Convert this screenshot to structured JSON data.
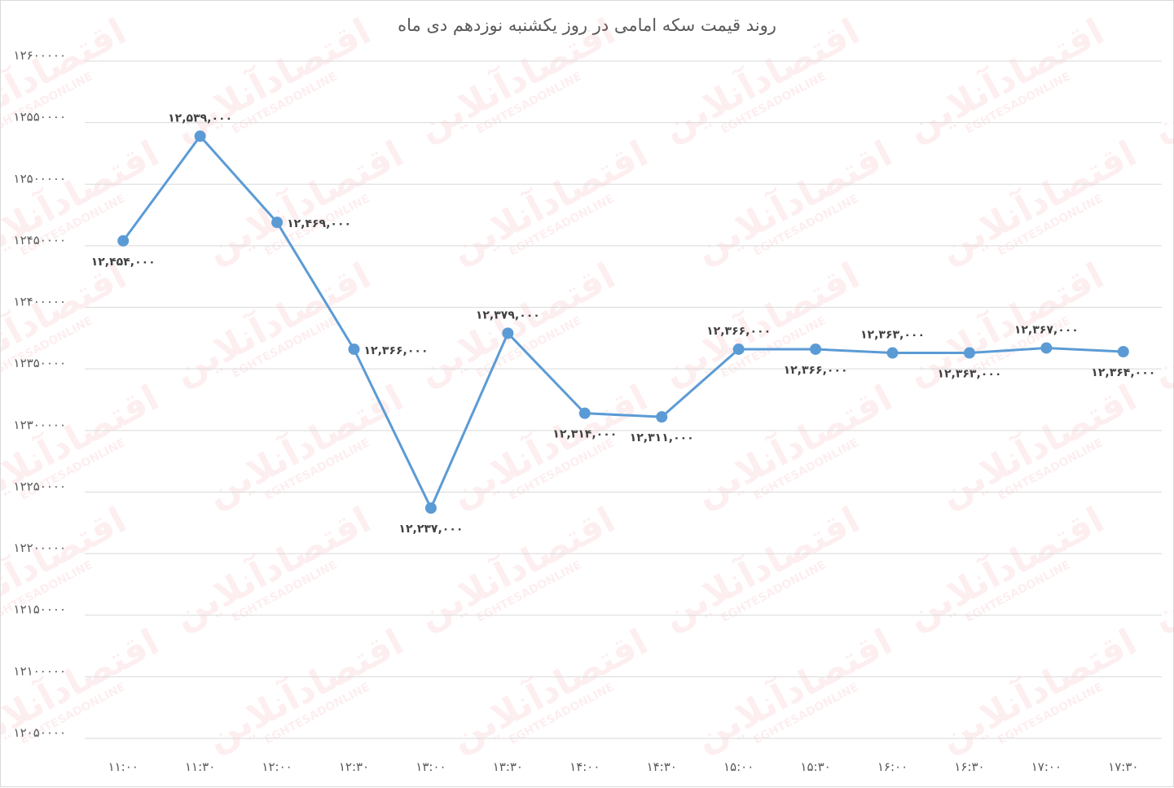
{
  "chart_data": {
    "type": "line",
    "title": "روند قیمت سکه امامی در روز یکشنبه نوزدهم دی ماه",
    "xlabel": "",
    "ylabel": "",
    "categories": [
      "۱۱:۰۰",
      "۱۱:۳۰",
      "۱۲:۰۰",
      "۱۲:۳۰",
      "۱۳:۰۰",
      "۱۳:۳۰",
      "۱۴:۰۰",
      "۱۴:۳۰",
      "۱۵:۰۰",
      "۱۵:۳۰",
      "۱۶:۰۰",
      "۱۶:۳۰",
      "۱۷:۰۰",
      "۱۷:۳۰"
    ],
    "series": [
      {
        "values": [
          12454000,
          12539000,
          12469000,
          12366000,
          12237000,
          12379000,
          12314000,
          12311000,
          12366000,
          12366000,
          12363000,
          12363000,
          12367000,
          12364000
        ],
        "data_labels": [
          "۱۲,۴۵۴,۰۰۰",
          "۱۲,۵۳۹,۰۰۰",
          "۱۲,۴۶۹,۰۰۰",
          "۱۲,۳۶۶,۰۰۰",
          "۱۲,۲۳۷,۰۰۰",
          "۱۲,۳۷۹,۰۰۰",
          "۱۲,۳۱۴,۰۰۰",
          "۱۲,۳۱۱,۰۰۰",
          "۱۲,۳۶۶,۰۰۰",
          "۱۲,۳۶۶,۰۰۰",
          "۱۲,۳۶۳,۰۰۰",
          "۱۲,۳۶۳,۰۰۰",
          "۱۲,۳۶۷,۰۰۰",
          "۱۲,۳۶۴,۰۰۰"
        ],
        "label_positions": [
          "below",
          "above",
          "right",
          "right",
          "below",
          "above",
          "below",
          "below",
          "above",
          "below",
          "above",
          "below",
          "above",
          "below"
        ],
        "color": "#5b9bd5"
      }
    ],
    "yticks": [
      12050000,
      12100000,
      12150000,
      12200000,
      12250000,
      12300000,
      12350000,
      12400000,
      12450000,
      12500000,
      12550000,
      12600000
    ],
    "ytick_labels": [
      "۱۲۰۵۰۰۰۰",
      "۱۲۱۰۰۰۰۰",
      "۱۲۱۵۰۰۰۰",
      "۱۲۲۰۰۰۰۰",
      "۱۲۲۵۰۰۰۰",
      "۱۲۳۰۰۰۰۰",
      "۱۲۳۵۰۰۰۰",
      "۱۲۴۰۰۰۰۰",
      "۱۲۴۵۰۰۰۰",
      "۱۲۵۰۰۰۰۰",
      "۱۲۵۵۰۰۰۰",
      "۱۲۶۰۰۰۰۰"
    ],
    "ylim": [
      12050000,
      12600000
    ],
    "grid": true,
    "legend": "none"
  },
  "watermark": {
    "text_fa": "اقتصادآنلاین",
    "text_en": "EGHTESADONLINE",
    "color": "#e8232a"
  }
}
